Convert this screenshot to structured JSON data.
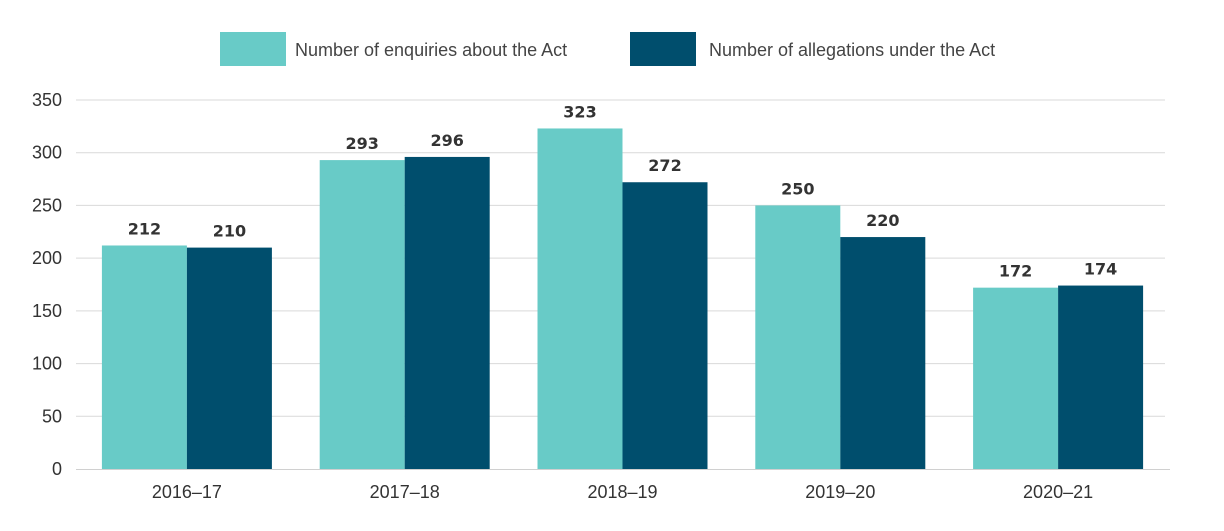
{
  "chart_data": {
    "type": "bar",
    "title": "",
    "xlabel": "",
    "ylabel": "",
    "categories": [
      "2016–17",
      "2017–18",
      "2018–19",
      "2019–20",
      "2020–21"
    ],
    "series": [
      {
        "name": "Number of enquiries about the Act",
        "values": [
          212,
          293,
          323,
          250,
          172
        ],
        "color": "#68cbc7"
      },
      {
        "name": "Number of allegations under the Act",
        "values": [
          210,
          296,
          272,
          220,
          174
        ],
        "color": "#004e6d"
      }
    ],
    "ylim": [
      0,
      350
    ],
    "yticks": [
      0,
      50,
      100,
      150,
      200,
      250,
      300,
      350
    ],
    "grid": true,
    "legend_position": "top-center",
    "data_labels": true
  }
}
